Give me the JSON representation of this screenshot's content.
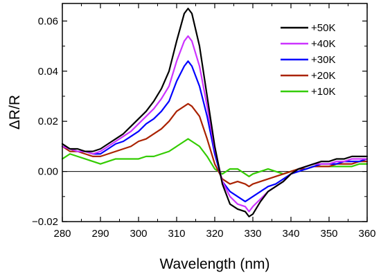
{
  "chart_data": {
    "type": "line",
    "xlabel": "Wavelength (nm)",
    "ylabel": "ΔR/R",
    "xlim": [
      280,
      360
    ],
    "ylim": [
      -0.02,
      0.067
    ],
    "xticks": [
      280,
      290,
      300,
      310,
      320,
      330,
      340,
      350,
      360
    ],
    "xtick_labels": [
      "280",
      "290",
      "300",
      "310",
      "320",
      "330",
      "340",
      "350",
      "360"
    ],
    "yticks": [
      -0.02,
      0.0,
      0.02,
      0.04,
      0.06
    ],
    "ytick_labels": [
      "−0.02",
      "0.00",
      "0.02",
      "0.04",
      "0.06"
    ],
    "zero_line": true,
    "grid": false,
    "legend_position": "top-right",
    "x": [
      280,
      282,
      284,
      286,
      288,
      290,
      292,
      294,
      296,
      298,
      300,
      302,
      304,
      306,
      308,
      310,
      312,
      313,
      314,
      316,
      318,
      320,
      322,
      324,
      326,
      328,
      329,
      330,
      332,
      334,
      336,
      338,
      340,
      342,
      344,
      346,
      348,
      350,
      352,
      354,
      356,
      358,
      360
    ],
    "series": [
      {
        "name": "+50K",
        "color": "#000000",
        "values": [
          0.011,
          0.009,
          0.009,
          0.008,
          0.008,
          0.009,
          0.011,
          0.013,
          0.015,
          0.018,
          0.021,
          0.024,
          0.028,
          0.033,
          0.04,
          0.052,
          0.063,
          0.065,
          0.063,
          0.05,
          0.03,
          0.01,
          -0.005,
          -0.013,
          -0.015,
          -0.016,
          -0.018,
          -0.017,
          -0.012,
          -0.008,
          -0.006,
          -0.004,
          -0.001,
          0.001,
          0.002,
          0.003,
          0.004,
          0.004,
          0.005,
          0.005,
          0.006,
          0.006,
          0.006
        ]
      },
      {
        "name": "+40K",
        "color": "#cc33ff",
        "values": [
          0.01,
          0.009,
          0.008,
          0.008,
          0.007,
          0.008,
          0.01,
          0.012,
          0.014,
          0.016,
          0.019,
          0.022,
          0.025,
          0.029,
          0.034,
          0.044,
          0.052,
          0.054,
          0.052,
          0.042,
          0.026,
          0.009,
          -0.004,
          -0.01,
          -0.013,
          -0.014,
          -0.016,
          -0.014,
          -0.011,
          -0.008,
          -0.006,
          -0.004,
          -0.001,
          0.001,
          0.002,
          0.003,
          0.003,
          0.003,
          0.004,
          0.004,
          0.005,
          0.005,
          0.005
        ]
      },
      {
        "name": "+30K",
        "color": "#0000ff",
        "values": [
          0.01,
          0.009,
          0.008,
          0.008,
          0.007,
          0.007,
          0.009,
          0.011,
          0.012,
          0.014,
          0.016,
          0.019,
          0.021,
          0.024,
          0.028,
          0.036,
          0.042,
          0.044,
          0.042,
          0.034,
          0.022,
          0.007,
          -0.004,
          -0.008,
          -0.01,
          -0.012,
          -0.011,
          -0.01,
          -0.008,
          -0.006,
          -0.005,
          -0.003,
          -0.001,
          0.0,
          0.001,
          0.002,
          0.003,
          0.003,
          0.003,
          0.004,
          0.004,
          0.004,
          0.005
        ]
      },
      {
        "name": "+20K",
        "color": "#aa2200",
        "values": [
          0.01,
          0.008,
          0.008,
          0.007,
          0.006,
          0.006,
          0.007,
          0.008,
          0.009,
          0.01,
          0.012,
          0.013,
          0.015,
          0.017,
          0.02,
          0.024,
          0.026,
          0.027,
          0.026,
          0.022,
          0.013,
          0.003,
          -0.003,
          -0.005,
          -0.004,
          -0.005,
          -0.006,
          -0.005,
          -0.004,
          -0.003,
          -0.002,
          -0.001,
          0.0,
          0.001,
          0.001,
          0.002,
          0.002,
          0.002,
          0.003,
          0.003,
          0.003,
          0.004,
          0.004
        ]
      },
      {
        "name": "+10K",
        "color": "#33cc00",
        "values": [
          0.005,
          0.007,
          0.006,
          0.005,
          0.004,
          0.003,
          0.004,
          0.005,
          0.005,
          0.005,
          0.005,
          0.006,
          0.006,
          0.007,
          0.008,
          0.01,
          0.012,
          0.013,
          0.012,
          0.01,
          0.006,
          0.001,
          -0.001,
          0.001,
          0.001,
          -0.001,
          -0.002,
          -0.001,
          0.0,
          0.001,
          0.0,
          -0.001,
          0.0,
          0.001,
          0.001,
          0.002,
          0.002,
          0.002,
          0.002,
          0.002,
          0.002,
          0.003,
          0.003
        ]
      }
    ]
  }
}
